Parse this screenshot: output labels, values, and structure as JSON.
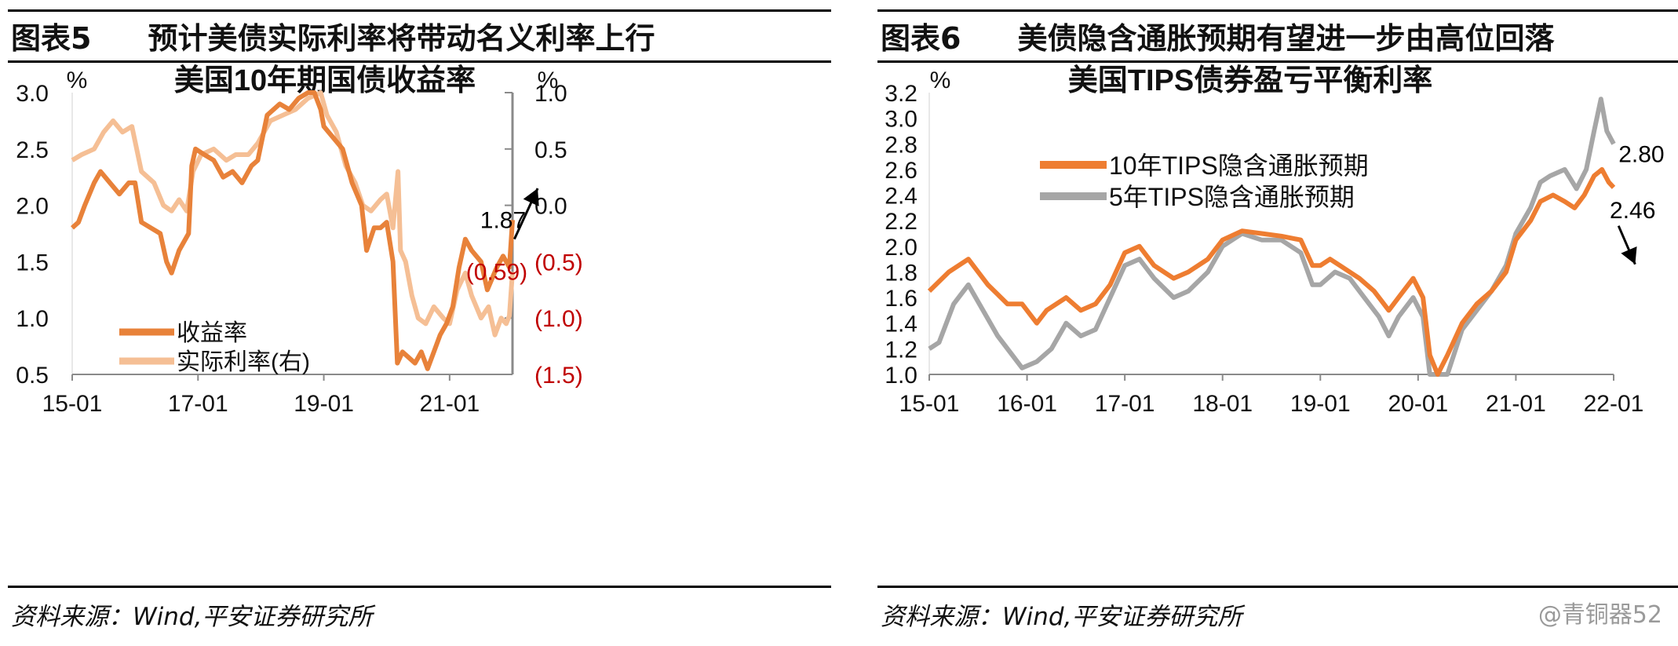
{
  "panels": [
    {
      "header": {
        "fig_no": "图表5",
        "title": "预计美债实际利率将带动名义利率上行"
      },
      "source": "资料来源：Wind,平安证券研究所"
    },
    {
      "header": {
        "fig_no": "图表6",
        "title": "美债隐含通胀预期有望进一步由高位回落"
      },
      "source": "资料来源：Wind,平安证券研究所"
    }
  ],
  "watermark": "@青铜器52",
  "chart_data": [
    {
      "type": "line",
      "title": "美国10年期国债收益率",
      "ylabel": "%",
      "y2label": "%",
      "ylim": [
        0.5,
        3.0
      ],
      "y2lim": [
        -1.5,
        1.0
      ],
      "yticks": [
        "3.0",
        "2.5",
        "2.0",
        "1.5",
        "1.0",
        "0.5"
      ],
      "y2ticks": [
        "1.0",
        "0.5",
        "0.0",
        "(0.5)",
        "(1.0)",
        "(1.5)"
      ],
      "xlim": [
        2015.0,
        2022.0
      ],
      "xticks": [
        {
          "x": 2015.0,
          "label": "15-01"
        },
        {
          "x": 2017.0,
          "label": "17-01"
        },
        {
          "x": 2019.0,
          "label": "19-01"
        },
        {
          "x": 2021.0,
          "label": "21-01"
        }
      ],
      "legend_position": "bottom-left",
      "series": [
        {
          "name": "收益率",
          "axis": "left",
          "color": "#e8823a",
          "points": [
            [
              2015.0,
              1.8
            ],
            [
              2015.1,
              1.85
            ],
            [
              2015.2,
              2.0
            ],
            [
              2015.35,
              2.2
            ],
            [
              2015.45,
              2.3
            ],
            [
              2015.6,
              2.2
            ],
            [
              2015.75,
              2.1
            ],
            [
              2015.9,
              2.2
            ],
            [
              2016.0,
              2.2
            ],
            [
              2016.1,
              1.85
            ],
            [
              2016.25,
              1.8
            ],
            [
              2016.4,
              1.75
            ],
            [
              2016.5,
              1.5
            ],
            [
              2016.58,
              1.4
            ],
            [
              2016.7,
              1.6
            ],
            [
              2016.85,
              1.75
            ],
            [
              2016.9,
              2.35
            ],
            [
              2016.96,
              2.5
            ],
            [
              2017.1,
              2.45
            ],
            [
              2017.25,
              2.4
            ],
            [
              2017.4,
              2.25
            ],
            [
              2017.55,
              2.3
            ],
            [
              2017.7,
              2.2
            ],
            [
              2017.85,
              2.35
            ],
            [
              2017.95,
              2.4
            ],
            [
              2018.1,
              2.8
            ],
            [
              2018.3,
              2.9
            ],
            [
              2018.45,
              2.85
            ],
            [
              2018.6,
              2.95
            ],
            [
              2018.75,
              3.1
            ],
            [
              2018.85,
              3.2
            ],
            [
              2018.95,
              2.85
            ],
            [
              2019.0,
              2.7
            ],
            [
              2019.15,
              2.6
            ],
            [
              2019.3,
              2.5
            ],
            [
              2019.45,
              2.2
            ],
            [
              2019.6,
              2.0
            ],
            [
              2019.68,
              1.6
            ],
            [
              2019.8,
              1.8
            ],
            [
              2019.9,
              1.8
            ],
            [
              2020.0,
              1.85
            ],
            [
              2020.1,
              1.5
            ],
            [
              2020.17,
              0.6
            ],
            [
              2020.25,
              0.7
            ],
            [
              2020.35,
              0.65
            ],
            [
              2020.45,
              0.6
            ],
            [
              2020.55,
              0.7
            ],
            [
              2020.65,
              0.55
            ],
            [
              2020.75,
              0.7
            ],
            [
              2020.85,
              0.85
            ],
            [
              2020.95,
              0.95
            ],
            [
              2021.05,
              1.1
            ],
            [
              2021.15,
              1.45
            ],
            [
              2021.25,
              1.7
            ],
            [
              2021.35,
              1.6
            ],
            [
              2021.5,
              1.5
            ],
            [
              2021.6,
              1.25
            ],
            [
              2021.75,
              1.45
            ],
            [
              2021.85,
              1.55
            ],
            [
              2021.95,
              1.45
            ],
            [
              2022.0,
              1.87
            ]
          ]
        },
        {
          "name": "实际利率(右)",
          "axis": "right",
          "color": "#f5bf95",
          "points": [
            [
              2015.0,
              0.4
            ],
            [
              2015.15,
              0.45
            ],
            [
              2015.35,
              0.5
            ],
            [
              2015.5,
              0.65
            ],
            [
              2015.65,
              0.75
            ],
            [
              2015.8,
              0.65
            ],
            [
              2015.95,
              0.7
            ],
            [
              2016.1,
              0.3
            ],
            [
              2016.3,
              0.2
            ],
            [
              2016.45,
              0.0
            ],
            [
              2016.58,
              -0.05
            ],
            [
              2016.7,
              0.05
            ],
            [
              2016.82,
              -0.05
            ],
            [
              2016.92,
              0.3
            ],
            [
              2017.05,
              0.45
            ],
            [
              2017.25,
              0.5
            ],
            [
              2017.45,
              0.4
            ],
            [
              2017.6,
              0.45
            ],
            [
              2017.8,
              0.45
            ],
            [
              2017.95,
              0.55
            ],
            [
              2018.15,
              0.75
            ],
            [
              2018.35,
              0.8
            ],
            [
              2018.55,
              0.85
            ],
            [
              2018.75,
              0.95
            ],
            [
              2018.95,
              1.1
            ],
            [
              2019.05,
              0.8
            ],
            [
              2019.2,
              0.65
            ],
            [
              2019.35,
              0.35
            ],
            [
              2019.5,
              0.2
            ],
            [
              2019.62,
              0.0
            ],
            [
              2019.75,
              -0.05
            ],
            [
              2019.9,
              0.05
            ],
            [
              2020.0,
              0.1
            ],
            [
              2020.1,
              -0.2
            ],
            [
              2020.18,
              0.3
            ],
            [
              2020.22,
              -0.4
            ],
            [
              2020.3,
              -0.5
            ],
            [
              2020.4,
              -0.8
            ],
            [
              2020.5,
              -1.0
            ],
            [
              2020.62,
              -1.05
            ],
            [
              2020.75,
              -0.9
            ],
            [
              2020.9,
              -1.0
            ],
            [
              2021.0,
              -1.05
            ],
            [
              2021.12,
              -0.75
            ],
            [
              2021.25,
              -0.6
            ],
            [
              2021.35,
              -0.8
            ],
            [
              2021.5,
              -1.0
            ],
            [
              2021.62,
              -0.9
            ],
            [
              2021.72,
              -1.15
            ],
            [
              2021.82,
              -1.0
            ],
            [
              2021.9,
              -1.05
            ],
            [
              2021.95,
              -0.98
            ],
            [
              2022.0,
              -0.59
            ]
          ]
        }
      ],
      "annotations": [
        {
          "text": "1.87",
          "x": 2021.85,
          "y": 1.87,
          "axis": "left",
          "color": "#000000"
        },
        {
          "text": "(0.59)",
          "x": 2021.75,
          "y": -0.59,
          "axis": "right",
          "color": "#c00000"
        }
      ],
      "arrow": {
        "from": [
          2022.03,
          1.7
        ],
        "to": [
          2022.4,
          2.15
        ],
        "axis": "left"
      },
      "right_axis_label_color": "#c00000"
    },
    {
      "type": "line",
      "title": "美国TIPS债券盈亏平衡利率",
      "ylabel": "%",
      "ylim": [
        1.0,
        3.2
      ],
      "yticks": [
        "3.2",
        "3.0",
        "2.8",
        "2.6",
        "2.4",
        "2.2",
        "2.0",
        "1.8",
        "1.6",
        "1.4",
        "1.2",
        "1.0"
      ],
      "xlim": [
        2015.0,
        2022.0
      ],
      "xticks": [
        {
          "x": 2015.0,
          "label": "15-01"
        },
        {
          "x": 2016.0,
          "label": "16-01"
        },
        {
          "x": 2017.0,
          "label": "17-01"
        },
        {
          "x": 2018.0,
          "label": "18-01"
        },
        {
          "x": 2019.0,
          "label": "19-01"
        },
        {
          "x": 2020.0,
          "label": "20-01"
        },
        {
          "x": 2021.0,
          "label": "21-01"
        },
        {
          "x": 2022.0,
          "label": "22-01"
        }
      ],
      "legend_position": "top-left",
      "series": [
        {
          "name": "10年TIPS隐含通胀预期",
          "color": "#ee7d31",
          "points": [
            [
              2015.0,
              1.65
            ],
            [
              2015.2,
              1.8
            ],
            [
              2015.4,
              1.9
            ],
            [
              2015.6,
              1.7
            ],
            [
              2015.8,
              1.55
            ],
            [
              2015.95,
              1.55
            ],
            [
              2016.1,
              1.4
            ],
            [
              2016.2,
              1.5
            ],
            [
              2016.4,
              1.6
            ],
            [
              2016.55,
              1.5
            ],
            [
              2016.7,
              1.55
            ],
            [
              2016.85,
              1.7
            ],
            [
              2017.0,
              1.95
            ],
            [
              2017.15,
              2.0
            ],
            [
              2017.3,
              1.85
            ],
            [
              2017.5,
              1.75
            ],
            [
              2017.65,
              1.8
            ],
            [
              2017.85,
              1.9
            ],
            [
              2018.0,
              2.05
            ],
            [
              2018.2,
              2.12
            ],
            [
              2018.4,
              2.1
            ],
            [
              2018.6,
              2.08
            ],
            [
              2018.8,
              2.05
            ],
            [
              2018.92,
              1.85
            ],
            [
              2019.0,
              1.85
            ],
            [
              2019.1,
              1.9
            ],
            [
              2019.2,
              1.85
            ],
            [
              2019.4,
              1.75
            ],
            [
              2019.55,
              1.65
            ],
            [
              2019.7,
              1.5
            ],
            [
              2019.8,
              1.6
            ],
            [
              2019.95,
              1.75
            ],
            [
              2020.05,
              1.6
            ],
            [
              2020.12,
              1.15
            ],
            [
              2020.2,
              1.0
            ],
            [
              2020.3,
              1.15
            ],
            [
              2020.45,
              1.4
            ],
            [
              2020.6,
              1.55
            ],
            [
              2020.75,
              1.65
            ],
            [
              2020.9,
              1.8
            ],
            [
              2021.0,
              2.05
            ],
            [
              2021.15,
              2.2
            ],
            [
              2021.25,
              2.35
            ],
            [
              2021.38,
              2.4
            ],
            [
              2021.5,
              2.35
            ],
            [
              2021.6,
              2.3
            ],
            [
              2021.7,
              2.4
            ],
            [
              2021.8,
              2.55
            ],
            [
              2021.88,
              2.6
            ],
            [
              2021.95,
              2.5
            ],
            [
              2022.0,
              2.46
            ]
          ]
        },
        {
          "name": "5年TIPS隐含通胀预期",
          "color": "#a6a6a6",
          "points": [
            [
              2015.0,
              1.2
            ],
            [
              2015.1,
              1.25
            ],
            [
              2015.25,
              1.55
            ],
            [
              2015.4,
              1.7
            ],
            [
              2015.55,
              1.5
            ],
            [
              2015.7,
              1.3
            ],
            [
              2015.85,
              1.15
            ],
            [
              2015.95,
              1.05
            ],
            [
              2016.1,
              1.1
            ],
            [
              2016.25,
              1.2
            ],
            [
              2016.4,
              1.4
            ],
            [
              2016.55,
              1.3
            ],
            [
              2016.7,
              1.35
            ],
            [
              2016.85,
              1.6
            ],
            [
              2017.0,
              1.85
            ],
            [
              2017.15,
              1.9
            ],
            [
              2017.3,
              1.75
            ],
            [
              2017.5,
              1.6
            ],
            [
              2017.65,
              1.65
            ],
            [
              2017.85,
              1.8
            ],
            [
              2018.0,
              2.0
            ],
            [
              2018.2,
              2.1
            ],
            [
              2018.4,
              2.05
            ],
            [
              2018.6,
              2.05
            ],
            [
              2018.8,
              1.95
            ],
            [
              2018.92,
              1.7
            ],
            [
              2019.0,
              1.7
            ],
            [
              2019.15,
              1.8
            ],
            [
              2019.3,
              1.75
            ],
            [
              2019.45,
              1.6
            ],
            [
              2019.6,
              1.45
            ],
            [
              2019.7,
              1.3
            ],
            [
              2019.8,
              1.45
            ],
            [
              2019.95,
              1.6
            ],
            [
              2020.05,
              1.45
            ],
            [
              2020.12,
              1.0
            ],
            [
              2020.2,
              0.9
            ],
            [
              2020.3,
              1.0
            ],
            [
              2020.45,
              1.35
            ],
            [
              2020.6,
              1.5
            ],
            [
              2020.75,
              1.65
            ],
            [
              2020.9,
              1.85
            ],
            [
              2021.0,
              2.1
            ],
            [
              2021.15,
              2.3
            ],
            [
              2021.25,
              2.5
            ],
            [
              2021.35,
              2.55
            ],
            [
              2021.5,
              2.6
            ],
            [
              2021.62,
              2.45
            ],
            [
              2021.72,
              2.6
            ],
            [
              2021.8,
              2.9
            ],
            [
              2021.87,
              3.15
            ],
            [
              2021.93,
              2.9
            ],
            [
              2022.0,
              2.8
            ]
          ]
        }
      ],
      "annotations": [
        {
          "text": "2.80",
          "x": 2022.05,
          "y": 2.72,
          "color": "#000000"
        },
        {
          "text": "2.46",
          "x": 2021.96,
          "y": 2.28,
          "color": "#000000"
        }
      ],
      "arrow": {
        "from": [
          2022.05,
          2.16
        ],
        "to": [
          2022.22,
          1.86
        ]
      }
    }
  ]
}
